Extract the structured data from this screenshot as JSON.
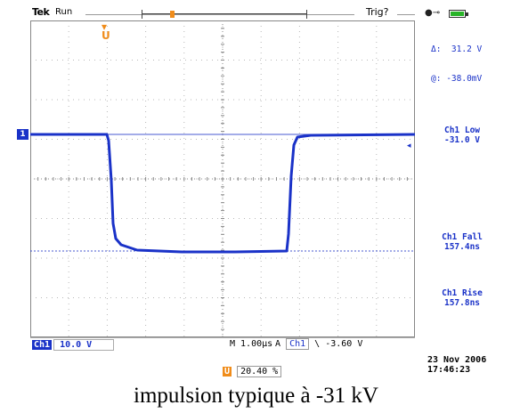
{
  "top": {
    "brand": "Tek",
    "status": "Run",
    "trigger_state": "Trig?"
  },
  "cursor": {
    "delta_label": "Δ:",
    "delta_value": "31.2 V",
    "at_label": "@:",
    "at_value": "-38.0mV"
  },
  "measurements": [
    {
      "label": "Ch1 Low",
      "value": "-31.0 V"
    },
    {
      "label": "Ch1 Fall",
      "value": "157.4ns"
    },
    {
      "label": "Ch1 Rise",
      "value": "157.8ns"
    }
  ],
  "channel": {
    "marker": "1",
    "tag": "Ch1",
    "scale": "10.0 V"
  },
  "timebase": "M 1.00µs",
  "trigger": {
    "mode": "A",
    "source": "Ch1",
    "slope": "\\",
    "level": "-3.60 V"
  },
  "horizontal_position": {
    "tag": "U",
    "value": "20.40 %"
  },
  "date": "23 Nov 2006",
  "time": "17:46:23",
  "caption": "impulsion typique à -31 kV",
  "colors": {
    "trace": "#1a32c8",
    "accent": "#f08c1a",
    "battery": "#28b428"
  },
  "icons": [
    "power-plug-icon",
    "battery-icon",
    "trigger-position-icon"
  ]
}
